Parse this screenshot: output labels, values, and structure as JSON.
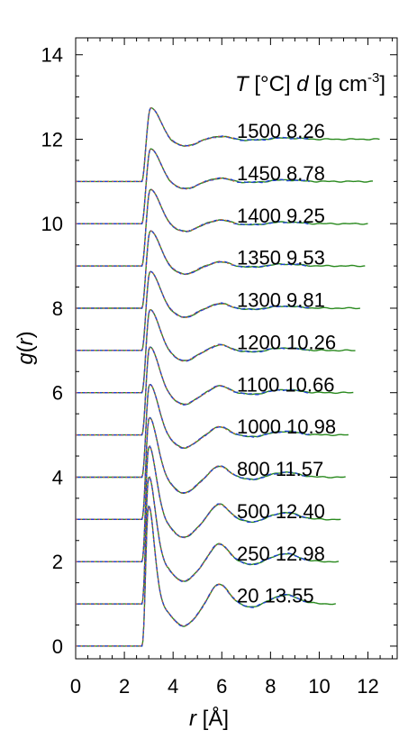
{
  "chart_data": {
    "type": "line",
    "xlabel_italic": "r",
    "xlabel_rest": " [Å]",
    "ylabel_italic_g": "g",
    "ylabel_open": "(",
    "ylabel_italic_r": "r",
    "ylabel_close": ")",
    "xlim": [
      0,
      13.2
    ],
    "ylim": [
      -0.3,
      14.4
    ],
    "x_ticks": [
      "0",
      "2",
      "4",
      "6",
      "8",
      "10",
      "12"
    ],
    "y_ticks": [
      "0",
      "2",
      "4",
      "6",
      "8",
      "10",
      "12",
      "14"
    ],
    "legend_header": {
      "t_italic": "T",
      "t_unit": " [°C] ",
      "d_italic": "d",
      "d_unit": " [g cm",
      "d_exp": "-3",
      "d_close": "]"
    },
    "colors": {
      "solid": "#2a8a1f",
      "dash_blue": "#1f3fd6",
      "dash_orange": "#e07020",
      "dash_purple": "#7a2a9a"
    },
    "series": [
      {
        "label": "1500 8.26",
        "temperature": 1500,
        "density": 8.26,
        "offset": 11,
        "peak1": 1.75,
        "p1x": 3.08,
        "min1": -0.16,
        "peak2": 0.07,
        "rmax": 12.5
      },
      {
        "label": "1450 8.78",
        "temperature": 1450,
        "density": 8.78,
        "offset": 10,
        "peak1": 1.78,
        "p1x": 3.07,
        "min1": -0.17,
        "peak2": 0.08,
        "rmax": 12.2
      },
      {
        "label": "1400 9.25",
        "temperature": 1400,
        "density": 9.25,
        "offset": 9,
        "peak1": 1.82,
        "p1x": 3.06,
        "min1": -0.18,
        "peak2": 0.09,
        "rmax": 12.0
      },
      {
        "label": "1350 9.53",
        "temperature": 1350,
        "density": 9.53,
        "offset": 8,
        "peak1": 1.84,
        "p1x": 3.06,
        "min1": -0.19,
        "peak2": 0.1,
        "rmax": 11.9
      },
      {
        "label": "1300 9.81",
        "temperature": 1300,
        "density": 9.81,
        "offset": 7,
        "peak1": 1.88,
        "p1x": 3.05,
        "min1": -0.21,
        "peak2": 0.11,
        "rmax": 11.7
      },
      {
        "label": "1200 10.26",
        "temperature": 1200,
        "density": 10.26,
        "offset": 6,
        "peak1": 1.98,
        "p1x": 3.04,
        "min1": -0.24,
        "peak2": 0.13,
        "rmax": 11.5
      },
      {
        "label": "1100 10.66",
        "temperature": 1100,
        "density": 10.66,
        "offset": 5,
        "peak1": 2.1,
        "p1x": 3.03,
        "min1": -0.27,
        "peak2": 0.16,
        "rmax": 11.4
      },
      {
        "label": "1000 10.98",
        "temperature": 1000,
        "density": 10.98,
        "offset": 4,
        "peak1": 2.22,
        "p1x": 3.02,
        "min1": -0.3,
        "peak2": 0.19,
        "rmax": 11.2
      },
      {
        "label": "800 11.57",
        "temperature": 800,
        "density": 11.57,
        "offset": 3,
        "peak1": 2.45,
        "p1x": 3.0,
        "min1": -0.37,
        "peak2": 0.26,
        "rmax": 11.1
      },
      {
        "label": "500 12.40",
        "temperature": 500,
        "density": 12.4,
        "offset": 2,
        "peak1": 2.8,
        "p1x": 2.98,
        "min1": -0.42,
        "peak2": 0.36,
        "rmax": 10.9
      },
      {
        "label": "250 12.98",
        "temperature": 250,
        "density": 12.98,
        "offset": 1,
        "peak1": 3.1,
        "p1x": 2.97,
        "min1": -0.46,
        "peak2": 0.42,
        "rmax": 10.8
      },
      {
        "label": "20 13.55",
        "temperature": 20,
        "density": 13.55,
        "offset": 0,
        "peak1": 3.45,
        "p1x": 2.96,
        "min1": -0.52,
        "peak2": 0.47,
        "rmax": 10.7
      }
    ]
  }
}
